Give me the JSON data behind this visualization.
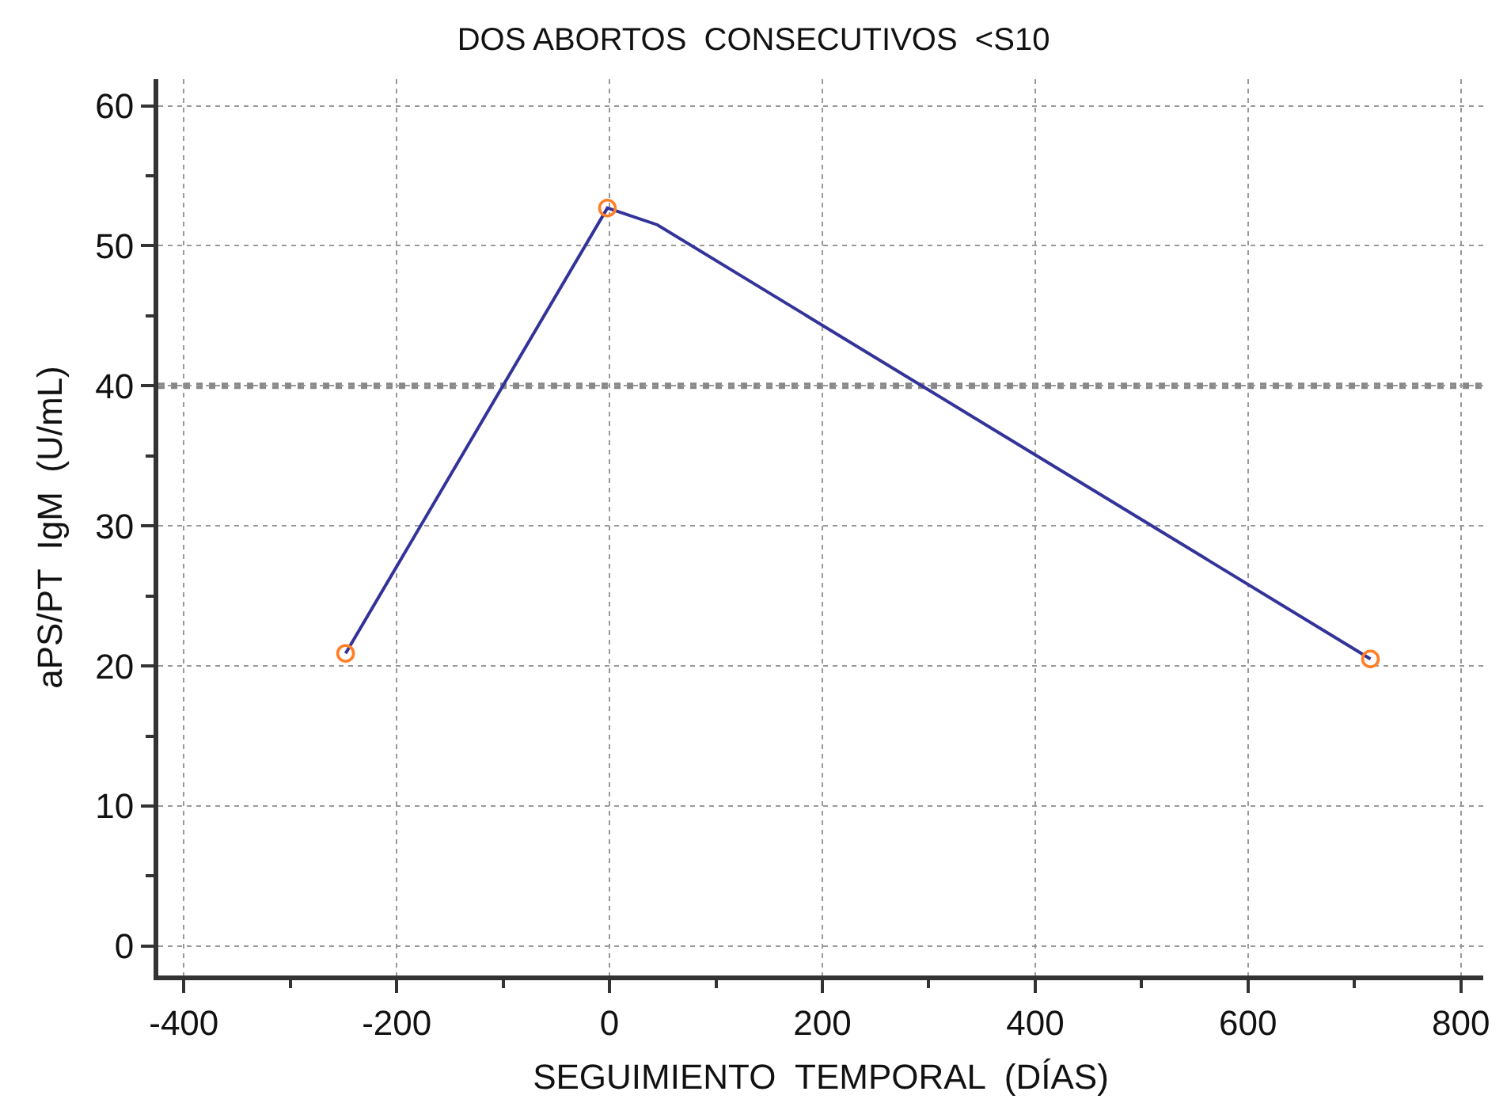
{
  "chart_data": {
    "type": "line",
    "title": "DOS ABORTOS  CONSECUTIVOS  <S10",
    "xlabel": "SEGUIMIENTO  TEMPORAL  (DÍAS)",
    "ylabel": "aPS/PT  IgM  (U/mL)",
    "series": [
      {
        "color": "#333399",
        "x": [
          -248,
          -2,
          45,
          715
        ],
        "values": [
          20.9,
          52.7,
          51.5,
          20.5
        ],
        "marker": "none",
        "line_style": "solid"
      },
      {
        "type": "scatter",
        "color": "#ff7f27",
        "x": [
          -248,
          -2,
          715
        ],
        "values": [
          20.9,
          52.7,
          20.5
        ],
        "marker": "circle"
      }
    ],
    "xlim": [
      -424,
      821
    ],
    "ylim": [
      -2.1,
      61.9
    ],
    "xticks": [
      -400,
      -200,
      0,
      200,
      400,
      600,
      800
    ],
    "yticks": [
      0,
      10,
      20,
      30,
      40,
      50,
      60
    ],
    "grid": true,
    "ref_lines": [
      {
        "axis": "y",
        "value": 40,
        "color": "#888888",
        "line_style": "dotted"
      }
    ]
  }
}
